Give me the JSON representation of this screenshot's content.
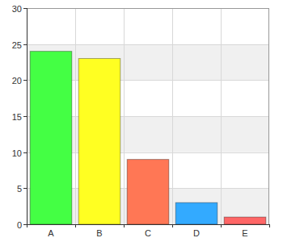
{
  "chart_data": {
    "type": "bar",
    "categories": [
      "A",
      "B",
      "C",
      "D",
      "E"
    ],
    "values": [
      24,
      23,
      9,
      3,
      1
    ],
    "colors": [
      "#44ff44",
      "#ffff22",
      "#ff7755",
      "#33aaff",
      "#ff6666"
    ],
    "ylim": [
      0,
      30
    ],
    "yticks": [
      0,
      5,
      10,
      15,
      20,
      25,
      30
    ],
    "grid": true
  }
}
